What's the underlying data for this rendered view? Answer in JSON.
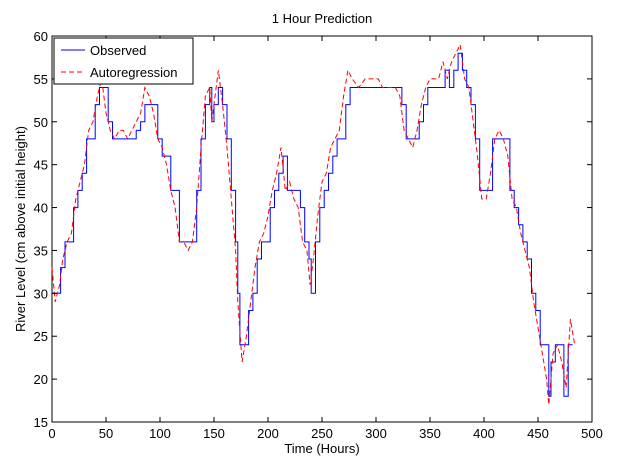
{
  "chart_data": {
    "type": "line",
    "title": "1 Hour Prediction",
    "xlabel": "Time (Hours)",
    "ylabel": "River Level (cm above initial height)",
    "xlim": [
      0,
      500
    ],
    "ylim": [
      15,
      60
    ],
    "xticks": [
      "0",
      "50",
      "100",
      "150",
      "200",
      "250",
      "300",
      "350",
      "400",
      "450",
      "500"
    ],
    "yticks": [
      "15",
      "20",
      "25",
      "30",
      "35",
      "40",
      "45",
      "50",
      "55",
      "60"
    ],
    "grid": false,
    "legend_position": "top-left",
    "series": [
      {
        "name": "Observed",
        "color": "#0000ff",
        "style": "solid",
        "points": [
          [
            0,
            30
          ],
          [
            4,
            30
          ],
          [
            8,
            33
          ],
          [
            12,
            36
          ],
          [
            16,
            36
          ],
          [
            20,
            40
          ],
          [
            24,
            42
          ],
          [
            28,
            44
          ],
          [
            32,
            48
          ],
          [
            36,
            48
          ],
          [
            40,
            52
          ],
          [
            44,
            54
          ],
          [
            48,
            54
          ],
          [
            52,
            50
          ],
          [
            56,
            48
          ],
          [
            60,
            48
          ],
          [
            66,
            48
          ],
          [
            70,
            48
          ],
          [
            74,
            48
          ],
          [
            78,
            49
          ],
          [
            82,
            50
          ],
          [
            86,
            52
          ],
          [
            90,
            52
          ],
          [
            94,
            52
          ],
          [
            98,
            48
          ],
          [
            102,
            46
          ],
          [
            106,
            46
          ],
          [
            110,
            42
          ],
          [
            114,
            42
          ],
          [
            118,
            36
          ],
          [
            122,
            36
          ],
          [
            126,
            36
          ],
          [
            130,
            36
          ],
          [
            134,
            42
          ],
          [
            138,
            48
          ],
          [
            142,
            52
          ],
          [
            146,
            54
          ],
          [
            148,
            50
          ],
          [
            150,
            52
          ],
          [
            154,
            54
          ],
          [
            158,
            52
          ],
          [
            162,
            48
          ],
          [
            166,
            42
          ],
          [
            170,
            36
          ],
          [
            172,
            30
          ],
          [
            174,
            24
          ],
          [
            178,
            24
          ],
          [
            182,
            28
          ],
          [
            186,
            30
          ],
          [
            190,
            34
          ],
          [
            194,
            36
          ],
          [
            198,
            36
          ],
          [
            202,
            40
          ],
          [
            206,
            42
          ],
          [
            210,
            44
          ],
          [
            214,
            46
          ],
          [
            218,
            42
          ],
          [
            222,
            42
          ],
          [
            226,
            42
          ],
          [
            230,
            40
          ],
          [
            234,
            36
          ],
          [
            238,
            34
          ],
          [
            240,
            30
          ],
          [
            244,
            36
          ],
          [
            248,
            40
          ],
          [
            252,
            42
          ],
          [
            256,
            44
          ],
          [
            260,
            46
          ],
          [
            264,
            48
          ],
          [
            268,
            48
          ],
          [
            272,
            52
          ],
          [
            276,
            54
          ],
          [
            280,
            54
          ],
          [
            290,
            54
          ],
          [
            300,
            54
          ],
          [
            310,
            54
          ],
          [
            316,
            54
          ],
          [
            320,
            54
          ],
          [
            324,
            52
          ],
          [
            328,
            48
          ],
          [
            332,
            48
          ],
          [
            336,
            48
          ],
          [
            340,
            50
          ],
          [
            344,
            52
          ],
          [
            348,
            54
          ],
          [
            352,
            54
          ],
          [
            356,
            54
          ],
          [
            360,
            54
          ],
          [
            364,
            56
          ],
          [
            368,
            54
          ],
          [
            372,
            56
          ],
          [
            376,
            58
          ],
          [
            380,
            56
          ],
          [
            384,
            54
          ],
          [
            388,
            52
          ],
          [
            392,
            48
          ],
          [
            396,
            42
          ],
          [
            400,
            42
          ],
          [
            404,
            42
          ],
          [
            408,
            48
          ],
          [
            412,
            48
          ],
          [
            416,
            48
          ],
          [
            420,
            48
          ],
          [
            424,
            42
          ],
          [
            428,
            40
          ],
          [
            432,
            38
          ],
          [
            436,
            36
          ],
          [
            440,
            34
          ],
          [
            444,
            30
          ],
          [
            448,
            28
          ],
          [
            452,
            24
          ],
          [
            456,
            24
          ],
          [
            460,
            18
          ],
          [
            462,
            22
          ],
          [
            466,
            24
          ],
          [
            470,
            24
          ],
          [
            474,
            18
          ],
          [
            478,
            24
          ],
          [
            482,
            24
          ]
        ]
      },
      {
        "name": "Autoregression",
        "color": "#ff0000",
        "style": "dashed",
        "points": [
          [
            0,
            33
          ],
          [
            3,
            29
          ],
          [
            7,
            31
          ],
          [
            10,
            34
          ],
          [
            14,
            36
          ],
          [
            18,
            37
          ],
          [
            22,
            41
          ],
          [
            26,
            43
          ],
          [
            30,
            45
          ],
          [
            34,
            49
          ],
          [
            38,
            50
          ],
          [
            42,
            53
          ],
          [
            46,
            55
          ],
          [
            50,
            51
          ],
          [
            54,
            49
          ],
          [
            58,
            48
          ],
          [
            62,
            49
          ],
          [
            66,
            49
          ],
          [
            70,
            48
          ],
          [
            74,
            49
          ],
          [
            78,
            50
          ],
          [
            82,
            51
          ],
          [
            86,
            54
          ],
          [
            90,
            53
          ],
          [
            94,
            51
          ],
          [
            98,
            48
          ],
          [
            102,
            47
          ],
          [
            106,
            45
          ],
          [
            110,
            42
          ],
          [
            114,
            40
          ],
          [
            118,
            36
          ],
          [
            122,
            36
          ],
          [
            126,
            35
          ],
          [
            130,
            36
          ],
          [
            134,
            40
          ],
          [
            138,
            47
          ],
          [
            142,
            53
          ],
          [
            146,
            54
          ],
          [
            148,
            50
          ],
          [
            150,
            52
          ],
          [
            154,
            56
          ],
          [
            158,
            52
          ],
          [
            162,
            47
          ],
          [
            166,
            41
          ],
          [
            170,
            35
          ],
          [
            172,
            29
          ],
          [
            176,
            22
          ],
          [
            180,
            25
          ],
          [
            184,
            29
          ],
          [
            188,
            33
          ],
          [
            192,
            36
          ],
          [
            196,
            37
          ],
          [
            200,
            39
          ],
          [
            204,
            42
          ],
          [
            208,
            44
          ],
          [
            212,
            47
          ],
          [
            216,
            42
          ],
          [
            220,
            43
          ],
          [
            224,
            41
          ],
          [
            228,
            40
          ],
          [
            232,
            36
          ],
          [
            236,
            35
          ],
          [
            239,
            31
          ],
          [
            242,
            34
          ],
          [
            246,
            39
          ],
          [
            250,
            43
          ],
          [
            254,
            44
          ],
          [
            258,
            47
          ],
          [
            262,
            48
          ],
          [
            266,
            49
          ],
          [
            270,
            53
          ],
          [
            274,
            56
          ],
          [
            278,
            55
          ],
          [
            284,
            54
          ],
          [
            290,
            55
          ],
          [
            296,
            55
          ],
          [
            302,
            55
          ],
          [
            306,
            54
          ],
          [
            312,
            54
          ],
          [
            318,
            54
          ],
          [
            322,
            53
          ],
          [
            326,
            49
          ],
          [
            330,
            48
          ],
          [
            334,
            47
          ],
          [
            338,
            49
          ],
          [
            342,
            52
          ],
          [
            346,
            54
          ],
          [
            350,
            55
          ],
          [
            354,
            55
          ],
          [
            358,
            55
          ],
          [
            362,
            57
          ],
          [
            366,
            55
          ],
          [
            370,
            57
          ],
          [
            374,
            58
          ],
          [
            378,
            59
          ],
          [
            382,
            55
          ],
          [
            386,
            54
          ],
          [
            390,
            50
          ],
          [
            394,
            46
          ],
          [
            398,
            41
          ],
          [
            402,
            41
          ],
          [
            406,
            44
          ],
          [
            410,
            48
          ],
          [
            414,
            49
          ],
          [
            418,
            48
          ],
          [
            422,
            46
          ],
          [
            426,
            41
          ],
          [
            430,
            40
          ],
          [
            434,
            37
          ],
          [
            438,
            35
          ],
          [
            442,
            33
          ],
          [
            446,
            29
          ],
          [
            450,
            26
          ],
          [
            454,
            23
          ],
          [
            458,
            20
          ],
          [
            460,
            17
          ],
          [
            464,
            23
          ],
          [
            468,
            24
          ],
          [
            472,
            22
          ],
          [
            476,
            19
          ],
          [
            480,
            27
          ],
          [
            484,
            24
          ]
        ]
      }
    ]
  }
}
